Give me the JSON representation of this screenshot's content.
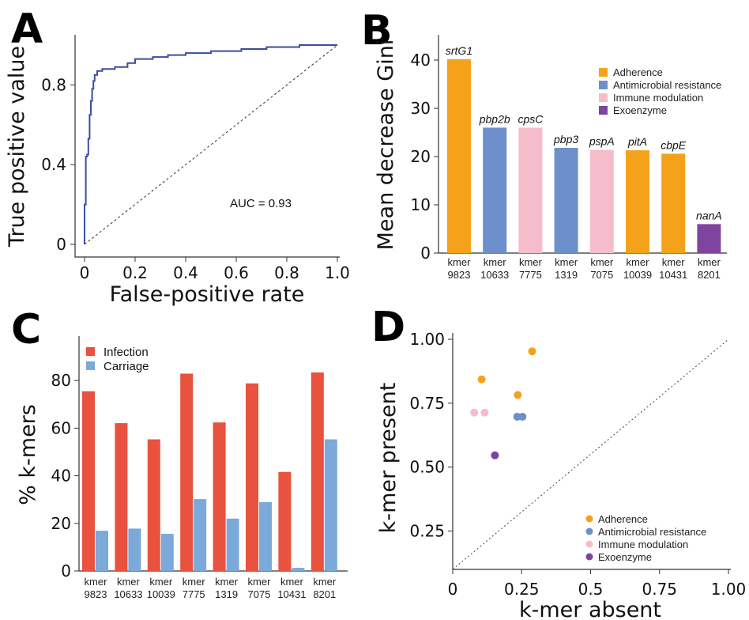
{
  "colors": {
    "adherence": "#f5a21b",
    "antimicrobial": "#6d8fcb",
    "immune": "#f5bdcb",
    "exoenzyme": "#7e44a0",
    "infection": "#e8523f",
    "carriage": "#7aa9da",
    "roc": "#3b4ea0"
  },
  "panels": {
    "a": "A",
    "b": "B",
    "c": "C",
    "d": "D"
  },
  "chart_data": [
    {
      "type": "line",
      "panel": "A",
      "xlabel": "False-positive rate",
      "ylabel": "True positive value",
      "xlim": [
        0,
        1
      ],
      "ylim": [
        0,
        1
      ],
      "xticks": [
        "0",
        "0.2",
        "0.4",
        "0.6",
        "0.8",
        "1.0"
      ],
      "yticks": [
        "0",
        "0.4",
        "0.8"
      ],
      "annotation": "AUC = 0.93",
      "diagonal": true,
      "series": [
        {
          "x": [
            0,
            0,
            0.005,
            0.005,
            0.01,
            0.01,
            0.015,
            0.015,
            0.02,
            0.02,
            0.025,
            0.025,
            0.03,
            0.03,
            0.035,
            0.035,
            0.04,
            0.04,
            0.05,
            0.05,
            0.07,
            0.07,
            0.12,
            0.12,
            0.17,
            0.17,
            0.2,
            0.2,
            0.27,
            0.27,
            0.33,
            0.33,
            0.4,
            0.4,
            0.5,
            0.5,
            0.62,
            0.62,
            0.72,
            0.72,
            0.85,
            0.85,
            1.0
          ],
          "y": [
            0,
            0.2,
            0.2,
            0.44,
            0.44,
            0.45,
            0.45,
            0.53,
            0.53,
            0.65,
            0.65,
            0.72,
            0.72,
            0.78,
            0.78,
            0.82,
            0.82,
            0.85,
            0.85,
            0.87,
            0.87,
            0.88,
            0.88,
            0.89,
            0.89,
            0.91,
            0.91,
            0.93,
            0.93,
            0.94,
            0.94,
            0.95,
            0.95,
            0.96,
            0.96,
            0.97,
            0.97,
            0.98,
            0.98,
            0.99,
            0.99,
            1.0,
            1.0
          ]
        }
      ]
    },
    {
      "type": "bar",
      "panel": "B",
      "ylabel": "Mean decrease Gini",
      "ylim": [
        0,
        45
      ],
      "yticks": [
        "0",
        "10",
        "20",
        "30",
        "40"
      ],
      "categories": [
        [
          "kmer",
          "9823"
        ],
        [
          "kmer",
          "10633"
        ],
        [
          "kmer",
          "7775"
        ],
        [
          "kmer",
          "1319"
        ],
        [
          "kmer",
          "7075"
        ],
        [
          "kmer",
          "10039"
        ],
        [
          "kmer",
          "10431"
        ],
        [
          "kmer",
          "8201"
        ]
      ],
      "values": [
        40.2,
        26.0,
        26.0,
        21.8,
        21.4,
        21.3,
        20.6,
        6.0
      ],
      "gene_labels": [
        "srtG1",
        "pbp2b",
        "cpsC",
        "pbp3",
        "pspA",
        "pitA",
        "cbpE",
        "nanA"
      ],
      "groups": [
        "adherence",
        "antimicrobial",
        "immune",
        "antimicrobial",
        "immune",
        "adherence",
        "adherence",
        "exoenzyme"
      ],
      "legend": [
        "Adherence",
        "Antimicrobial resistance",
        "Immune modulation",
        "Exoenzyme"
      ],
      "legend_position": "top-right"
    },
    {
      "type": "bar",
      "panel": "C",
      "ylabel": "% k-mers",
      "ylim": [
        0,
        95
      ],
      "yticks": [
        "0",
        "20",
        "40",
        "60",
        "80"
      ],
      "categories": [
        [
          "kmer",
          "9823"
        ],
        [
          "kmer",
          "10633"
        ],
        [
          "kmer",
          "10039"
        ],
        [
          "kmer",
          "7775"
        ],
        [
          "kmer",
          "1319"
        ],
        [
          "kmer",
          "7075"
        ],
        [
          "kmer",
          "10431"
        ],
        [
          "kmer",
          "8201"
        ]
      ],
      "series": [
        {
          "name": "Infection",
          "values": [
            75.5,
            62.1,
            55.3,
            82.9,
            62.4,
            78.8,
            41.6,
            83.4
          ]
        },
        {
          "name": "Carriage",
          "values": [
            16.9,
            17.8,
            15.6,
            30.2,
            22.0,
            28.9,
            1.3,
            55.3
          ]
        }
      ],
      "legend_position": "top-left"
    },
    {
      "type": "scatter",
      "panel": "D",
      "xlabel": "k-mer absent",
      "ylabel": "k-mer present",
      "xlim": [
        0,
        1
      ],
      "ylim": [
        0.1,
        1
      ],
      "xticks": [
        "0",
        "0.25",
        "0.5",
        "0.75",
        "1.00"
      ],
      "yticks": [
        "0.25",
        "0.50",
        "0.75",
        "1.00"
      ],
      "diagonal": true,
      "points": [
        {
          "x": 0.105,
          "y": 0.843,
          "group": "adherence"
        },
        {
          "x": 0.236,
          "y": 0.782,
          "group": "adherence"
        },
        {
          "x": 0.288,
          "y": 0.953,
          "group": "adherence"
        },
        {
          "x": 0.234,
          "y": 0.697,
          "group": "antimicrobial"
        },
        {
          "x": 0.253,
          "y": 0.697,
          "group": "antimicrobial"
        },
        {
          "x": 0.078,
          "y": 0.713,
          "group": "immune"
        },
        {
          "x": 0.116,
          "y": 0.713,
          "group": "immune"
        },
        {
          "x": 0.153,
          "y": 0.546,
          "group": "exoenzyme"
        }
      ],
      "legend": [
        "Adherence",
        "Antimicrobial resistance",
        "Immune modulation",
        "Exoenzyme"
      ],
      "legend_position": "bottom-right"
    }
  ]
}
